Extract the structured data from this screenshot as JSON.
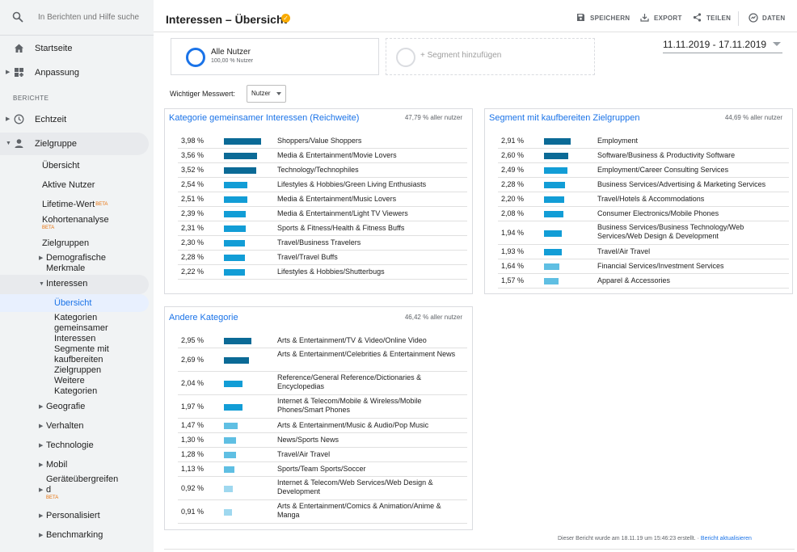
{
  "search": {
    "placeholder": "In Berichten und Hilfe suche"
  },
  "nav": {
    "home": "Startseite",
    "custom": "Anpassung",
    "section": "BERICHTE",
    "realtime": "Echtzeit",
    "audience": "Zielgruppe"
  },
  "audience_sub": {
    "overview": "Übersicht",
    "active_users": "Aktive Nutzer",
    "lifetime": "Lifetime-Wert",
    "beta": "BETA",
    "cohort": "Kohortenanalyse",
    "audiences": "Zielgruppen",
    "demographics": "Demografische Merkmale",
    "interests": "Interessen",
    "geo": "Geografie",
    "behavior": "Verhalten",
    "technology": "Technologie",
    "mobile": "Mobil",
    "cross_device": "Geräteübergreifend",
    "personalized": "Personalisiert",
    "benchmarking": "Benchmarking"
  },
  "interests_sub": {
    "overview": "Übersicht",
    "affinity": "Kategorien gemeinsamer Interessen",
    "inmarket": "Segmente mit kaufbereiten Zielgruppen",
    "other": "Weitere Kategorien"
  },
  "header": {
    "title": "Interessen – Übersicht",
    "save": "SPEICHERN",
    "export": "EXPORT",
    "share": "TEILEN",
    "insights": "DATEN"
  },
  "segment": {
    "name": "Alle Nutzer",
    "sub": "100,00 % Nutzer",
    "add": "+ Segment hinzufügen"
  },
  "date_range": "11.11.2019 - 17.11.2019",
  "metric": {
    "label": "Wichtiger Messwert:",
    "value": "Nutzer"
  },
  "cards": [
    {
      "title": "Kategorie gemeinsamer Interessen (Reichweite)",
      "share": "47,79 % aller nutzer",
      "rows": [
        {
          "value": "3,98 %",
          "pct": 3.98,
          "name": "Shoppers/Value Shoppers"
        },
        {
          "value": "3,56 %",
          "pct": 3.56,
          "name": "Media & Entertainment/Movie Lovers"
        },
        {
          "value": "3,52 %",
          "pct": 3.52,
          "name": "Technology/Technophiles"
        },
        {
          "value": "2,54 %",
          "pct": 2.54,
          "name": "Lifestyles & Hobbies/Green Living Enthusiasts"
        },
        {
          "value": "2,51 %",
          "pct": 2.51,
          "name": "Media & Entertainment/Music Lovers"
        },
        {
          "value": "2,39 %",
          "pct": 2.39,
          "name": "Media & Entertainment/Light TV Viewers"
        },
        {
          "value": "2,31 %",
          "pct": 2.31,
          "name": "Sports & Fitness/Health & Fitness Buffs"
        },
        {
          "value": "2,30 %",
          "pct": 2.3,
          "name": "Travel/Business Travelers"
        },
        {
          "value": "2,28 %",
          "pct": 2.28,
          "name": "Travel/Travel Buffs"
        },
        {
          "value": "2,22 %",
          "pct": 2.22,
          "name": "Lifestyles & Hobbies/Shutterbugs"
        }
      ]
    },
    {
      "title": "Segment mit kaufbereiten Zielgruppen",
      "share": "44,69 % aller nutzer",
      "rows": [
        {
          "value": "2,91 %",
          "pct": 2.91,
          "name": "Employment"
        },
        {
          "value": "2,60 %",
          "pct": 2.6,
          "name": "Software/Business & Productivity Software"
        },
        {
          "value": "2,49 %",
          "pct": 2.49,
          "name": "Employment/Career Consulting Services"
        },
        {
          "value": "2,28 %",
          "pct": 2.28,
          "name": "Business Services/Advertising & Marketing Services"
        },
        {
          "value": "2,20 %",
          "pct": 2.2,
          "name": "Travel/Hotels & Accommodations"
        },
        {
          "value": "2,08 %",
          "pct": 2.08,
          "name": "Consumer Electronics/Mobile Phones"
        },
        {
          "value": "1,94 %",
          "pct": 1.94,
          "name": "Business Services/Business Technology/Web Services/Web Design & Development"
        },
        {
          "value": "1,93 %",
          "pct": 1.93,
          "name": "Travel/Air Travel"
        },
        {
          "value": "1,64 %",
          "pct": 1.64,
          "name": "Financial Services/Investment Services"
        },
        {
          "value": "1,57 %",
          "pct": 1.57,
          "name": "Apparel & Accessories"
        }
      ]
    },
    {
      "title": "Andere Kategorie",
      "share": "46,42 % aller nutzer",
      "rows": [
        {
          "value": "2,95 %",
          "pct": 2.95,
          "name": "Arts & Entertainment/TV & Video/Online Video"
        },
        {
          "value": "2,69 %",
          "pct": 2.69,
          "name": "Arts & Entertainment/Celebrities & Entertainment News"
        },
        {
          "value": "2,04 %",
          "pct": 2.04,
          "name": "Reference/General Reference/Dictionaries & Encyclopedias"
        },
        {
          "value": "1,97 %",
          "pct": 1.97,
          "name": "Internet & Telecom/Mobile & Wireless/Mobile Phones/Smart Phones"
        },
        {
          "value": "1,47 %",
          "pct": 1.47,
          "name": "Arts & Entertainment/Music & Audio/Pop Music"
        },
        {
          "value": "1,30 %",
          "pct": 1.3,
          "name": "News/Sports News"
        },
        {
          "value": "1,28 %",
          "pct": 1.28,
          "name": "Travel/Air Travel"
        },
        {
          "value": "1,13 %",
          "pct": 1.13,
          "name": "Sports/Team Sports/Soccer"
        },
        {
          "value": "0,92 %",
          "pct": 0.92,
          "name": "Internet & Telecom/Web Services/Web Design & Development"
        },
        {
          "value": "0,91 %",
          "pct": 0.91,
          "name": "Arts & Entertainment/Comics & Animation/Anime & Manga"
        }
      ]
    }
  ],
  "footer": {
    "text": "Dieser Bericht wurde am 18.11.19 um 15:46:23 erstellt. · ",
    "link": "Bericht aktualisieren"
  },
  "colors": {
    "dark_bar": "#0b6a96",
    "mid_bar": "#129dd6",
    "light_bar": "#5fbfe3",
    "pale_bar": "#9fd8ef",
    "ring": "#1a73e8"
  }
}
